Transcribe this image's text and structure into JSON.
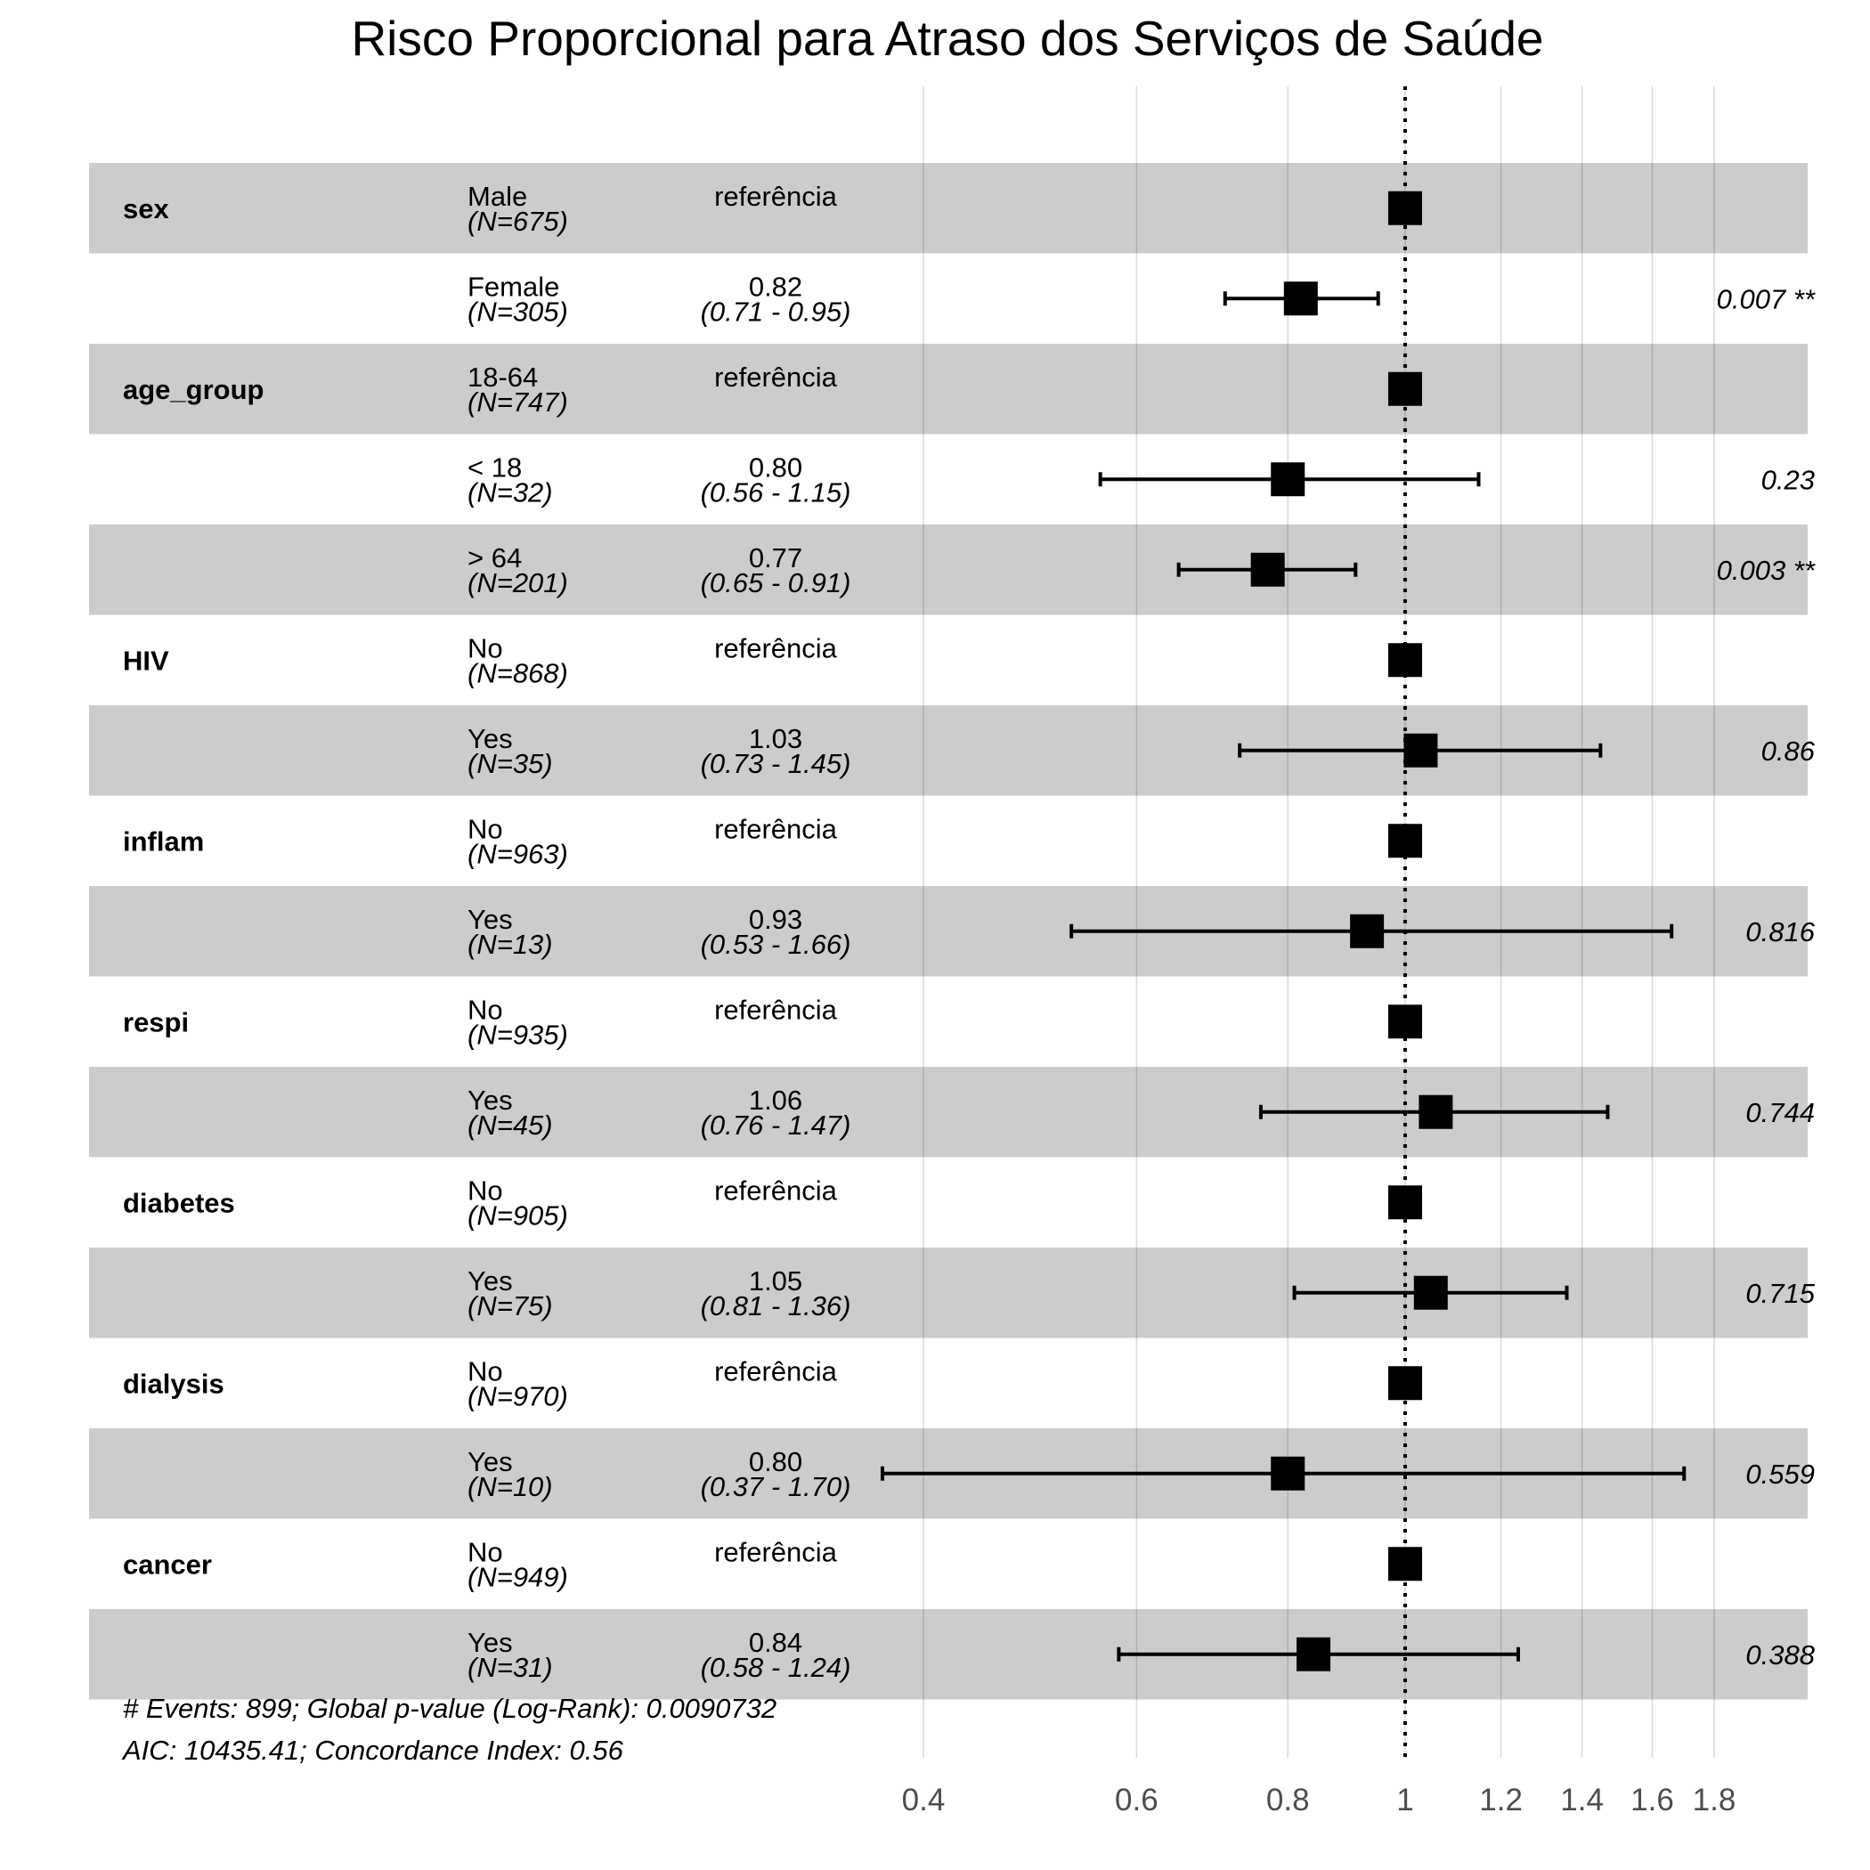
{
  "chart_data": {
    "type": "forest",
    "title": "Risco Proporcional para Atraso dos Serviços de Saúde",
    "x_scale": "log",
    "xlim": [
      0.37,
      1.9
    ],
    "reference_value": 1,
    "ticks": [
      {
        "value": 0.4,
        "label": "0.4"
      },
      {
        "value": 0.6,
        "label": "0.6"
      },
      {
        "value": 0.8,
        "label": "0.8"
      },
      {
        "value": 1.0,
        "label": "1"
      },
      {
        "value": 1.2,
        "label": "1.2"
      },
      {
        "value": 1.4,
        "label": "1.4"
      },
      {
        "value": 1.6,
        "label": "1.6"
      },
      {
        "value": 1.8,
        "label": "1.8"
      }
    ],
    "rows": [
      {
        "variable": "sex",
        "level": "Male",
        "n": "(N=675)",
        "estimate": "referência",
        "ci": "",
        "p": "",
        "hr": 1.0,
        "lo": null,
        "hi": null
      },
      {
        "variable": "",
        "level": "Female",
        "n": "(N=305)",
        "estimate": "0.82",
        "ci": "(0.71 - 0.95)",
        "p": "0.007 **",
        "hr": 0.82,
        "lo": 0.71,
        "hi": 0.95
      },
      {
        "variable": "age_group",
        "level": "18-64",
        "n": "(N=747)",
        "estimate": "referência",
        "ci": "",
        "p": "",
        "hr": 1.0,
        "lo": null,
        "hi": null
      },
      {
        "variable": "",
        "level": "< 18",
        "n": "(N=32)",
        "estimate": "0.80",
        "ci": "(0.56 - 1.15)",
        "p": "0.23",
        "hr": 0.8,
        "lo": 0.56,
        "hi": 1.15
      },
      {
        "variable": "",
        "level": "> 64",
        "n": "(N=201)",
        "estimate": "0.77",
        "ci": "(0.65 - 0.91)",
        "p": "0.003 **",
        "hr": 0.77,
        "lo": 0.65,
        "hi": 0.91
      },
      {
        "variable": "HIV",
        "level": "No",
        "n": "(N=868)",
        "estimate": "referência",
        "ci": "",
        "p": "",
        "hr": 1.0,
        "lo": null,
        "hi": null
      },
      {
        "variable": "",
        "level": "Yes",
        "n": "(N=35)",
        "estimate": "1.03",
        "ci": "(0.73 - 1.45)",
        "p": "0.86",
        "hr": 1.03,
        "lo": 0.73,
        "hi": 1.45
      },
      {
        "variable": "inflam",
        "level": "No",
        "n": "(N=963)",
        "estimate": "referência",
        "ci": "",
        "p": "",
        "hr": 1.0,
        "lo": null,
        "hi": null
      },
      {
        "variable": "",
        "level": "Yes",
        "n": "(N=13)",
        "estimate": "0.93",
        "ci": "(0.53 - 1.66)",
        "p": "0.816",
        "hr": 0.93,
        "lo": 0.53,
        "hi": 1.66
      },
      {
        "variable": "respi",
        "level": "No",
        "n": "(N=935)",
        "estimate": "referência",
        "ci": "",
        "p": "",
        "hr": 1.0,
        "lo": null,
        "hi": null
      },
      {
        "variable": "",
        "level": "Yes",
        "n": "(N=45)",
        "estimate": "1.06",
        "ci": "(0.76 - 1.47)",
        "p": "0.744",
        "hr": 1.06,
        "lo": 0.76,
        "hi": 1.47
      },
      {
        "variable": "diabetes",
        "level": "No",
        "n": "(N=905)",
        "estimate": "referência",
        "ci": "",
        "p": "",
        "hr": 1.0,
        "lo": null,
        "hi": null
      },
      {
        "variable": "",
        "level": "Yes",
        "n": "(N=75)",
        "estimate": "1.05",
        "ci": "(0.81 - 1.36)",
        "p": "0.715",
        "hr": 1.05,
        "lo": 0.81,
        "hi": 1.36
      },
      {
        "variable": "dialysis",
        "level": "No",
        "n": "(N=970)",
        "estimate": "referência",
        "ci": "",
        "p": "",
        "hr": 1.0,
        "lo": null,
        "hi": null
      },
      {
        "variable": "",
        "level": "Yes",
        "n": "(N=10)",
        "estimate": "0.80",
        "ci": "(0.37 - 1.70)",
        "p": "0.559",
        "hr": 0.8,
        "lo": 0.37,
        "hi": 1.7
      },
      {
        "variable": "cancer",
        "level": "No",
        "n": "(N=949)",
        "estimate": "referência",
        "ci": "",
        "p": "",
        "hr": 1.0,
        "lo": null,
        "hi": null
      },
      {
        "variable": "",
        "level": "Yes",
        "n": "(N=31)",
        "estimate": "0.84",
        "ci": "(0.58 - 1.24)",
        "p": "0.388",
        "hr": 0.84,
        "lo": 0.58,
        "hi": 1.24
      }
    ],
    "footer": [
      "# Events: 899; Global p-value (Log-Rank): 0.0090732",
      "AIC: 10435.41; Concordance Index: 0.56"
    ],
    "colors": {
      "band": "#cccccc",
      "marker": "#000000",
      "grid": "#d9d9d9",
      "tick_text": "#4d4d4d"
    }
  }
}
